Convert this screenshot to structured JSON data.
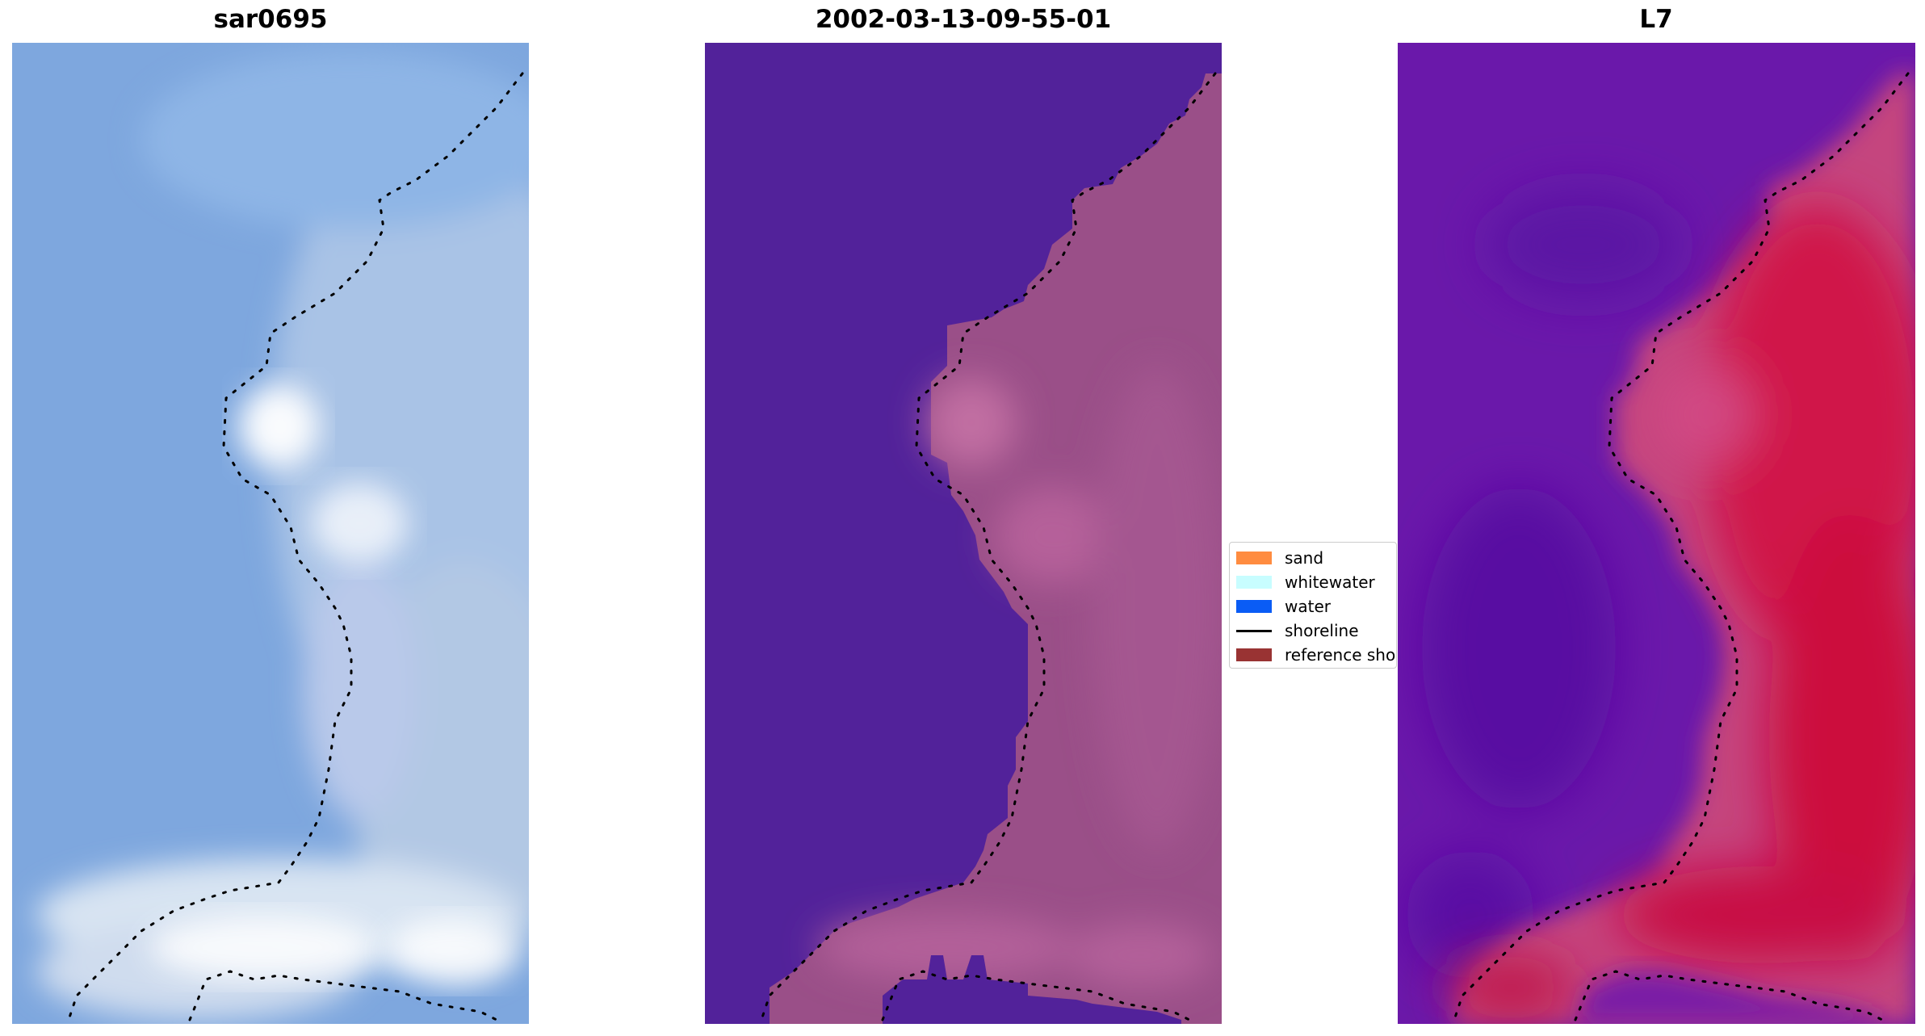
{
  "panels": [
    {
      "title": "sar0695"
    },
    {
      "title": "2002-03-13-09-55-01"
    },
    {
      "title": "L7"
    }
  ],
  "legend": {
    "items": [
      {
        "label": "sand",
        "color": "#ff8c40"
      },
      {
        "label": "whitewater",
        "color": "#c8fdff"
      },
      {
        "label": "water",
        "color": "#0a5cf5"
      },
      {
        "label": "shoreline",
        "color": "#000000"
      },
      {
        "label": "reference shoreline",
        "color": "#993333"
      }
    ]
  },
  "colors": {
    "water_mask": "#52229a",
    "land_mask": "#9a4f88",
    "l7_low": "#5e10a6",
    "l7_high": "#cc0a3a",
    "rgb_sky": "#7fa8e0"
  }
}
